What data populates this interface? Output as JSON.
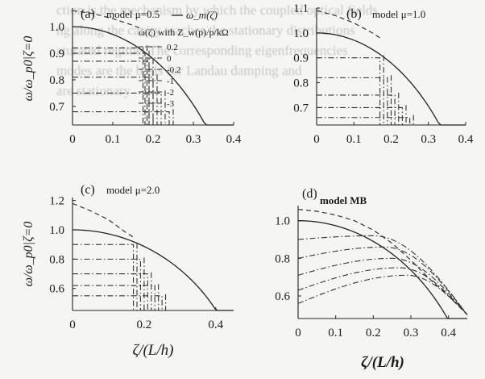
{
  "background_text": [
    "ction is the mechanism by which the coupled optical fields",
    "ng along the cavity reaches the stationary distributions",
    "aturated regime. The corresponding eigenfrequencies",
    "modes are the basis for Landau damping and",
    "are stationary"
  ],
  "colors": {
    "solid": "#222222",
    "dashed": "#333333",
    "dashdot": "#333333"
  },
  "common": {
    "xlabel": "ζ/(L/h)",
    "ylabel": "ω/ω_p0|ζ=0"
  },
  "chart_data": [
    {
      "type": "line",
      "panel": "(a)",
      "title": "model μ=0.5",
      "legend_solid": "ω_m(ζ)",
      "legend_title": "ω(ζ) with Z_w(p)/p/kΩ",
      "legend_values": [
        "0.2",
        "0",
        "-0.2",
        "-1",
        "-2",
        "-3"
      ],
      "xlim": [
        0,
        0.4
      ],
      "ylim": [
        0.63,
        1.07
      ],
      "xticks": [
        "0",
        "0.1",
        "0.2",
        "0.3",
        "0.4"
      ],
      "yticks": [
        "0.7",
        "0.8",
        "0.9",
        "1.0"
      ],
      "ytick_values": [
        0.7,
        0.8,
        0.9,
        1.0
      ],
      "xtick_values": [
        0,
        0.1,
        0.2,
        0.3,
        0.4
      ],
      "solid_curve": {
        "omega0": 1.0,
        "zeta_end": 0.4
      },
      "dashed_curve": {
        "x": [
          0,
          0.05,
          0.1,
          0.15,
          0.175
        ],
        "y": [
          1.06,
          1.05,
          1.03,
          1.005,
          0.99
        ]
      },
      "dashdot_series": [
        {
          "value": "0.2",
          "y": 0.92,
          "x_end": 0.175
        },
        {
          "value": "0",
          "y": 0.9,
          "x_end": 0.18
        },
        {
          "value": "-0.2",
          "y": 0.87,
          "x_end": 0.19
        },
        {
          "value": "-1",
          "y": 0.81,
          "x_end": 0.2
        },
        {
          "value": "-2",
          "y": 0.75,
          "x_end": 0.22
        },
        {
          "value": "-3",
          "y": 0.68,
          "x_end": 0.24
        }
      ]
    },
    {
      "type": "line",
      "panel": "(b)",
      "title": "model μ=1.0",
      "xlim": [
        0,
        0.4
      ],
      "ylim": [
        0.63,
        1.1
      ],
      "xticks": [
        "0",
        "0.1",
        "0.2",
        "0.3",
        "0.4"
      ],
      "yticks": [
        "0.7",
        "0.8",
        "0.9",
        "1.0",
        "1.1"
      ],
      "ytick_values": [
        0.7,
        0.8,
        0.9,
        1.0,
        1.1
      ],
      "xtick_values": [
        0,
        0.1,
        0.2,
        0.3,
        0.4
      ],
      "solid_curve": {
        "omega0": 1.0,
        "zeta_end": 0.4
      },
      "dashed_curve": {
        "x": [
          0,
          0.05,
          0.1,
          0.15,
          0.17
        ],
        "y": [
          1.09,
          1.07,
          1.04,
          1.0,
          0.98
        ]
      },
      "dashdot_series": [
        {
          "y": 0.9,
          "x_end": 0.17
        },
        {
          "y": 0.82,
          "x_end": 0.19
        },
        {
          "y": 0.75,
          "x_end": 0.21
        },
        {
          "y": 0.7,
          "x_end": 0.23
        },
        {
          "y": 0.66,
          "x_end": 0.25
        }
      ]
    },
    {
      "type": "line",
      "panel": "(c)",
      "title": "model μ=2.0",
      "xlim": [
        0,
        0.45
      ],
      "ylim": [
        0.45,
        1.22
      ],
      "xticks": [
        "0",
        "0.2",
        "0.4"
      ],
      "yticks": [
        "0.6",
        "0.8",
        "1.0",
        "1.2"
      ],
      "ytick_values": [
        0.6,
        0.8,
        1.0,
        1.2
      ],
      "xtick_values": [
        0,
        0.2,
        0.4
      ],
      "solid_curve": {
        "omega0": 1.0,
        "zeta_end": 0.45
      },
      "dashed_curve": {
        "x": [
          0,
          0.05,
          0.1,
          0.15,
          0.17
        ],
        "y": [
          1.18,
          1.13,
          1.07,
          0.98,
          0.95
        ]
      },
      "dashdot_series": [
        {
          "y": 0.9,
          "x_end": 0.17
        },
        {
          "y": 0.8,
          "x_end": 0.19
        },
        {
          "y": 0.7,
          "x_end": 0.21
        },
        {
          "y": 0.62,
          "x_end": 0.23
        },
        {
          "y": 0.55,
          "x_end": 0.25
        }
      ]
    },
    {
      "type": "line",
      "panel": "(d)",
      "title": "model MB",
      "xlim": [
        0,
        0.45
      ],
      "ylim": [
        0.48,
        1.08
      ],
      "xticks": [
        "0",
        "0.1",
        "0.2",
        "0.3",
        "0.4"
      ],
      "yticks": [
        "0.6",
        "0.8",
        "1.0"
      ],
      "ytick_values": [
        0.6,
        0.8,
        1.0
      ],
      "xtick_values": [
        0,
        0.1,
        0.2,
        0.3,
        0.4
      ],
      "solid_curve": {
        "omega0": 1.0,
        "zeta_end": 0.45
      },
      "dashed_curve": {
        "x": [
          0,
          0.05,
          0.1,
          0.15,
          0.2,
          0.25,
          0.3,
          0.35,
          0.4,
          0.45
        ],
        "y": [
          1.06,
          1.05,
          1.03,
          1.0,
          0.95,
          0.88,
          0.79,
          0.69,
          0.6,
          0.5
        ]
      },
      "bump_series": [
        {
          "y0": 0.9,
          "peak_x": 0.2,
          "peak_y": 0.92
        },
        {
          "y0": 0.8,
          "peak_x": 0.23,
          "peak_y": 0.86
        },
        {
          "y0": 0.71,
          "peak_x": 0.25,
          "peak_y": 0.8
        },
        {
          "y0": 0.63,
          "peak_x": 0.27,
          "peak_y": 0.75
        },
        {
          "y0": 0.56,
          "peak_x": 0.29,
          "peak_y": 0.71
        }
      ]
    }
  ]
}
